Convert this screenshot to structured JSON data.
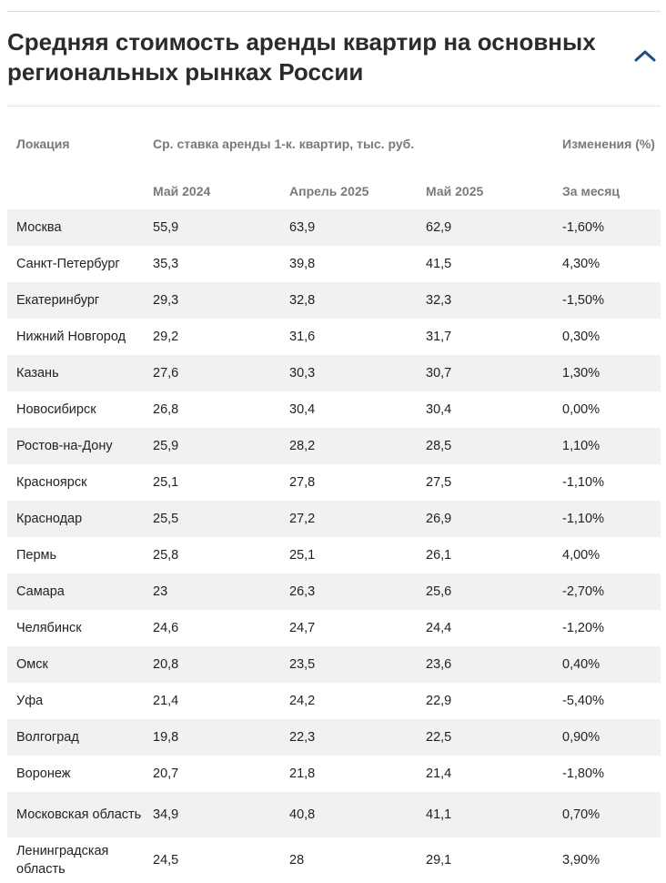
{
  "title": "Средняя стоимость аренды квартир на основных региональных рынках России",
  "collapse_icon": "chevron-up-icon",
  "accent_color": "#1f4f82",
  "table": {
    "headers": {
      "location": "Локация",
      "rate_group": "Ср. ставка аренды 1-к. квартир, тыс. руб.",
      "change_group": "Изменения (%)",
      "may_2024": "Май 2024",
      "april_2025": "Апрель 2025",
      "may_2025": "Май 2025",
      "per_month": "За месяц"
    },
    "rows": [
      {
        "location": "Москва",
        "may_2024": "55,9",
        "april_2025": "63,9",
        "may_2025": "62,9",
        "change": "-1,60%"
      },
      {
        "location": "Санкт-Петербург",
        "may_2024": "35,3",
        "april_2025": "39,8",
        "may_2025": "41,5",
        "change": "4,30%"
      },
      {
        "location": "Екатеринбург",
        "may_2024": "29,3",
        "april_2025": "32,8",
        "may_2025": "32,3",
        "change": "-1,50%"
      },
      {
        "location": "Нижний Новгород",
        "may_2024": "29,2",
        "april_2025": "31,6",
        "may_2025": "31,7",
        "change": "0,30%"
      },
      {
        "location": "Казань",
        "may_2024": "27,6",
        "april_2025": "30,3",
        "may_2025": "30,7",
        "change": "1,30%"
      },
      {
        "location": "Новосибирск",
        "may_2024": "26,8",
        "april_2025": "30,4",
        "may_2025": "30,4",
        "change": "0,00%"
      },
      {
        "location": "Ростов-на-Дону",
        "may_2024": "25,9",
        "april_2025": "28,2",
        "may_2025": "28,5",
        "change": "1,10%"
      },
      {
        "location": "Красноярск",
        "may_2024": "25,1",
        "april_2025": "27,8",
        "may_2025": "27,5",
        "change": "-1,10%"
      },
      {
        "location": "Краснодар",
        "may_2024": "25,5",
        "april_2025": "27,2",
        "may_2025": "26,9",
        "change": "-1,10%"
      },
      {
        "location": "Пермь",
        "may_2024": "25,8",
        "april_2025": "25,1",
        "may_2025": "26,1",
        "change": "4,00%"
      },
      {
        "location": "Самара",
        "may_2024": "23",
        "april_2025": "26,3",
        "may_2025": "25,6",
        "change": "-2,70%"
      },
      {
        "location": "Челябинск",
        "may_2024": "24,6",
        "april_2025": "24,7",
        "may_2025": "24,4",
        "change": "-1,20%"
      },
      {
        "location": "Омск",
        "may_2024": "20,8",
        "april_2025": "23,5",
        "may_2025": "23,6",
        "change": "0,40%"
      },
      {
        "location": "Уфа",
        "may_2024": "21,4",
        "april_2025": "24,2",
        "may_2025": "22,9",
        "change": "-5,40%"
      },
      {
        "location": "Волгоград",
        "may_2024": "19,8",
        "april_2025": "22,3",
        "may_2025": "22,5",
        "change": "0,90%"
      },
      {
        "location": "Воронеж",
        "may_2024": "20,7",
        "april_2025": "21,8",
        "may_2025": "21,4",
        "change": "-1,80%"
      },
      {
        "location": "Московская область",
        "may_2024": "34,9",
        "april_2025": "40,8",
        "may_2025": "41,1",
        "change": "0,70%"
      },
      {
        "location": "Ленинградская область",
        "may_2024": "24,5",
        "april_2025": "28",
        "may_2025": "29,1",
        "change": "3,90%"
      }
    ]
  }
}
